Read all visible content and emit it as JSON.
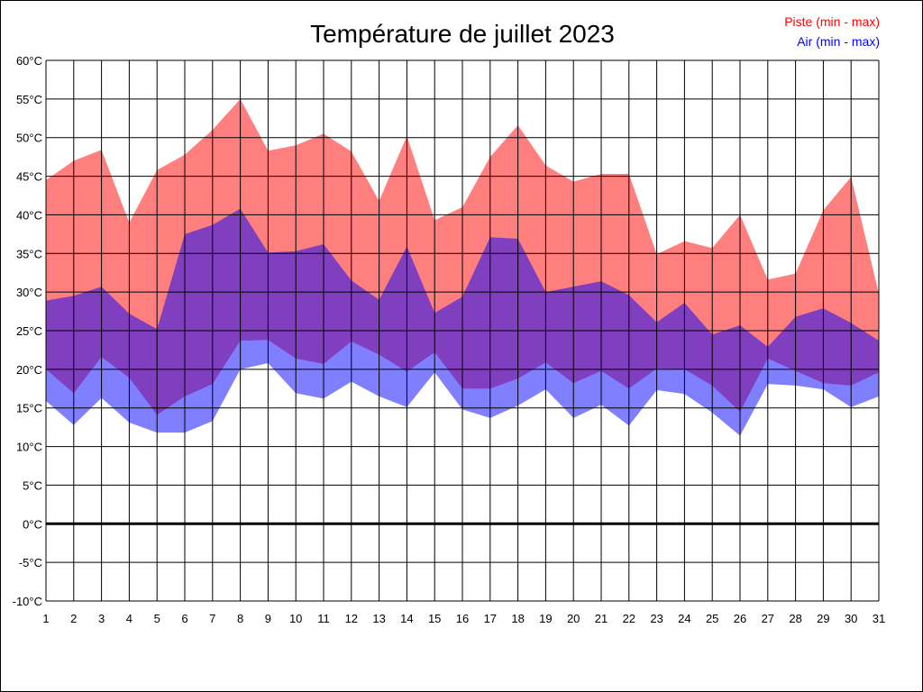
{
  "chart_data": {
    "type": "area",
    "title": "Température de juillet 2023",
    "xlabel": "",
    "ylabel": "",
    "categories": [
      1,
      2,
      3,
      4,
      5,
      6,
      7,
      8,
      9,
      10,
      11,
      12,
      13,
      14,
      15,
      16,
      17,
      18,
      19,
      20,
      21,
      22,
      23,
      24,
      25,
      26,
      27,
      28,
      29,
      30,
      31
    ],
    "ylim": [
      -10,
      60
    ],
    "yticks": [
      60,
      55,
      50,
      45,
      40,
      35,
      30,
      25,
      20,
      15,
      10,
      5,
      0,
      -5,
      -10
    ],
    "ytick_unit": "°C",
    "grid": true,
    "legend_position": "top-right",
    "series": [
      {
        "name": "Piste (min - max)",
        "color": "#ff0000",
        "fill": "rgba(255,0,0,0.5)",
        "min": [
          20,
          16.9,
          21.6,
          18.9,
          14.1,
          16.5,
          18.1,
          23.7,
          23.8,
          21.4,
          20.7,
          23.6,
          21.9,
          19.7,
          22.2,
          17.5,
          17.5,
          18.8,
          20.9,
          18.2,
          19.8,
          17.5,
          20.1,
          20,
          17.9,
          14.5,
          21.4,
          19.8,
          18.2,
          17.9,
          19.6
        ],
        "max": [
          44.5,
          47,
          48.4,
          39,
          45.8,
          47.8,
          51,
          55,
          48.3,
          49,
          50.5,
          48.2,
          41.8,
          50.2,
          39.3,
          41,
          47.5,
          51.6,
          46.4,
          44.3,
          45.3,
          45.3,
          34.9,
          36.6,
          35.7,
          40,
          31.6,
          32.4,
          40.6,
          44.9,
          29.8
        ]
      },
      {
        "name": "Air (min - max)",
        "color": "#0000ff",
        "fill": "rgba(0,0,255,0.5)",
        "min": [
          15.9,
          12.8,
          16.3,
          13.1,
          11.8,
          11.8,
          13.3,
          20,
          20.8,
          16.9,
          16.2,
          18.4,
          16.5,
          15.1,
          19.6,
          14.8,
          13.7,
          15.3,
          17.4,
          13.7,
          15.4,
          12.7,
          17.3,
          16.8,
          14.4,
          11.4,
          18.1,
          17.9,
          17.4,
          15.1,
          16.5
        ],
        "max": [
          28.9,
          29.5,
          30.7,
          27.2,
          25.2,
          37.5,
          38.7,
          40.8,
          35.1,
          35.3,
          36.2,
          31.5,
          29,
          35.9,
          27.3,
          29.4,
          37.1,
          36.9,
          30,
          30.7,
          31.4,
          29.6,
          26.1,
          28.6,
          24.5,
          25.7,
          22.9,
          26.8,
          27.9,
          26,
          23.7
        ]
      }
    ]
  }
}
